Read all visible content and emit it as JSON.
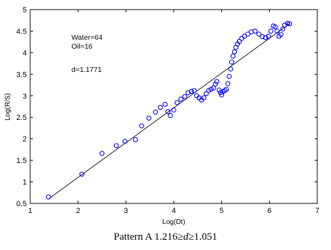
{
  "chart_data": {
    "type": "scatter",
    "xlabel": "Log(Dt)",
    "ylabel": "Log(R/S)",
    "xlim": [
      1,
      7
    ],
    "ylim": [
      0.5,
      5
    ],
    "xticks": [
      "1",
      "2",
      "3",
      "4",
      "5",
      "6",
      "7"
    ],
    "yticks": [
      "0.5",
      "1",
      "1.5",
      "2",
      "2.5",
      "3",
      "3.5",
      "4",
      "4.5",
      "5"
    ],
    "grid": false,
    "annotations": [
      "Water=64",
      "Oil=16",
      "d=1.1771"
    ],
    "marker_color": "#0000ff",
    "fit_line": {
      "x": [
        1.4,
        6.43
      ],
      "y": [
        0.62,
        4.68
      ]
    },
    "series": [
      {
        "marker": "circle",
        "points": [
          [
            1.38,
            0.65
          ],
          [
            2.08,
            1.18
          ],
          [
            2.5,
            1.66
          ],
          [
            2.8,
            1.84
          ],
          [
            2.98,
            1.94
          ],
          [
            3.2,
            1.98
          ],
          [
            3.33,
            2.3
          ],
          [
            3.48,
            2.48
          ],
          [
            3.62,
            2.62
          ],
          [
            3.72,
            2.73
          ],
          [
            3.82,
            2.8
          ],
          [
            3.88,
            2.63
          ],
          [
            3.93,
            2.54
          ],
          [
            4.0,
            2.67
          ],
          [
            4.07,
            2.84
          ],
          [
            4.15,
            2.92
          ],
          [
            4.23,
            2.98
          ],
          [
            4.3,
            3.07
          ],
          [
            4.37,
            3.1
          ],
          [
            4.43,
            3.12
          ],
          [
            4.48,
            3.0
          ],
          [
            4.53,
            2.95
          ],
          [
            4.58,
            2.9
          ],
          [
            4.63,
            2.95
          ],
          [
            4.68,
            3.05
          ],
          [
            4.73,
            3.12
          ],
          [
            4.78,
            3.15
          ],
          [
            4.83,
            3.18
          ],
          [
            4.87,
            3.27
          ],
          [
            4.9,
            3.33
          ],
          [
            4.95,
            3.13
          ],
          [
            4.98,
            3.07
          ],
          [
            5.0,
            3.02
          ],
          [
            5.03,
            3.1
          ],
          [
            5.07,
            3.12
          ],
          [
            5.1,
            3.15
          ],
          [
            5.13,
            3.28
          ],
          [
            5.16,
            3.45
          ],
          [
            5.19,
            3.62
          ],
          [
            5.21,
            3.78
          ],
          [
            5.24,
            3.92
          ],
          [
            5.27,
            4.02
          ],
          [
            5.3,
            4.12
          ],
          [
            5.33,
            4.2
          ],
          [
            5.37,
            4.26
          ],
          [
            5.42,
            4.33
          ],
          [
            5.48,
            4.38
          ],
          [
            5.55,
            4.43
          ],
          [
            5.62,
            4.48
          ],
          [
            5.7,
            4.5
          ],
          [
            5.78,
            4.43
          ],
          [
            5.85,
            4.37
          ],
          [
            5.92,
            4.35
          ],
          [
            5.98,
            4.38
          ],
          [
            6.03,
            4.5
          ],
          [
            6.08,
            4.62
          ],
          [
            6.12,
            4.6
          ],
          [
            6.16,
            4.5
          ],
          [
            6.2,
            4.38
          ],
          [
            6.24,
            4.42
          ],
          [
            6.28,
            4.55
          ],
          [
            6.32,
            4.64
          ],
          [
            6.38,
            4.68
          ],
          [
            6.42,
            4.67
          ]
        ]
      }
    ]
  },
  "caption": {
    "prefix": "Pattern A 1.216≥",
    "variable": "d",
    "suffix": "≥1.051"
  }
}
